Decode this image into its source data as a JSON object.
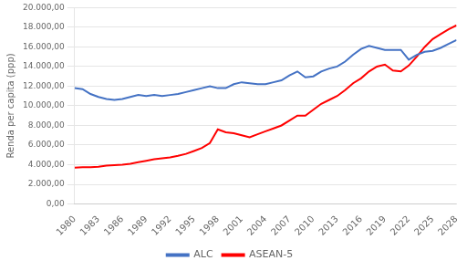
{
  "chart_data": {
    "type": "line",
    "ylabel": "Renda per capita (ppp)",
    "x": [
      1980,
      1981,
      1982,
      1983,
      1984,
      1985,
      1986,
      1987,
      1988,
      1989,
      1990,
      1991,
      1992,
      1993,
      1994,
      1995,
      1996,
      1997,
      1998,
      1999,
      2000,
      2001,
      2002,
      2003,
      2004,
      2005,
      2006,
      2007,
      2008,
      2009,
      2010,
      2011,
      2012,
      2013,
      2014,
      2015,
      2016,
      2017,
      2018,
      2019,
      2020,
      2021,
      2022,
      2023,
      2024,
      2025,
      2026,
      2027,
      2028
    ],
    "series": [
      {
        "name": "ALC",
        "color": "#4472C4",
        "values": [
          11800,
          11700,
          11200,
          10900,
          10700,
          10600,
          10700,
          10900,
          11100,
          11000,
          11100,
          11000,
          11100,
          11200,
          11400,
          11600,
          11800,
          12000,
          11800,
          11800,
          12200,
          12400,
          12300,
          12200,
          12200,
          12400,
          12600,
          13100,
          13500,
          12900,
          13000,
          13500,
          13800,
          14000,
          14500,
          15200,
          15800,
          16100,
          15900,
          15700,
          15700,
          15700,
          14700,
          15200,
          15500,
          15600,
          15900,
          16300,
          16700
        ]
      },
      {
        "name": "ASEAN-5",
        "color": "#FF0000",
        "values": [
          3700,
          3750,
          3750,
          3800,
          3900,
          3950,
          4000,
          4100,
          4250,
          4400,
          4550,
          4650,
          4750,
          4900,
          5100,
          5400,
          5700,
          6200,
          7600,
          7300,
          7200,
          7000,
          6800,
          7100,
          7400,
          7700,
          8000,
          8500,
          9000,
          9000,
          9600,
          10200,
          10600,
          11000,
          11600,
          12300,
          12800,
          13500,
          14000,
          14200,
          13600,
          13500,
          14100,
          15000,
          16000,
          16800,
          17300,
          17800,
          18200
        ]
      }
    ],
    "xlim": [
      1980,
      2028
    ],
    "xticks": [
      1980,
      1983,
      1986,
      1989,
      1992,
      1995,
      1998,
      2001,
      2004,
      2007,
      2010,
      2013,
      2016,
      2019,
      2022,
      2025,
      2028
    ],
    "ylim": [
      0,
      20000
    ],
    "yticks": [
      {
        "value": 0,
        "label": "0,00"
      },
      {
        "value": 2000,
        "label": "2.000,00"
      },
      {
        "value": 4000,
        "label": "4.000,00"
      },
      {
        "value": 6000,
        "label": "6.000,00"
      },
      {
        "value": 8000,
        "label": "8.000,00"
      },
      {
        "value": 10000,
        "label": "10.000,00"
      },
      {
        "value": 12000,
        "label": "12.000,00"
      },
      {
        "value": 14000,
        "label": "14.000,00"
      },
      {
        "value": 16000,
        "label": "16.000,00"
      },
      {
        "value": 18000,
        "label": "18.000,00"
      },
      {
        "value": 20000,
        "label": "20.000,00"
      }
    ],
    "grid": true,
    "legend": "bottom"
  }
}
